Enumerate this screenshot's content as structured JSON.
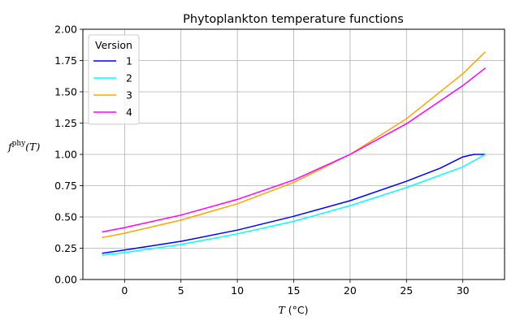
{
  "chart_data": {
    "type": "line",
    "title": "Phytoplankton temperature functions",
    "xlabel": {
      "var": "T",
      "unit": " (°C)"
    },
    "ylabel": {
      "base": "f",
      "sup": "phy",
      "arg": "(T)"
    },
    "xlim": [
      -3.7,
      33.7
    ],
    "ylim": [
      0,
      2
    ],
    "x_ticks": [
      0,
      5,
      10,
      15,
      20,
      25,
      30
    ],
    "y_ticks": [
      "0.00",
      "0.25",
      "0.50",
      "0.75",
      "1.00",
      "1.25",
      "1.50",
      "1.75",
      "2.00"
    ],
    "grid": true,
    "legend": {
      "title": "Version",
      "placement": "top-left"
    },
    "series": [
      {
        "name": "1",
        "color": "#0000ff",
        "x": [
          -2,
          0,
          5,
          10,
          15,
          20,
          25,
          28,
          30,
          31,
          32
        ],
        "y": [
          0.21,
          0.235,
          0.305,
          0.395,
          0.505,
          0.63,
          0.785,
          0.89,
          0.98,
          1.0,
          1.0
        ]
      },
      {
        "name": "2",
        "color": "#00ffff",
        "x": [
          -2,
          0,
          5,
          10,
          15,
          20,
          25,
          30,
          32
        ],
        "y": [
          0.195,
          0.215,
          0.28,
          0.365,
          0.465,
          0.59,
          0.735,
          0.9,
          1.0
        ]
      },
      {
        "name": "3",
        "color": "#ffa500",
        "x": [
          -2,
          0,
          5,
          10,
          15,
          20,
          25,
          30,
          32
        ],
        "y": [
          0.335,
          0.37,
          0.475,
          0.605,
          0.775,
          1.0,
          1.285,
          1.645,
          1.82
        ]
      },
      {
        "name": "4",
        "color": "#ff00ff",
        "x": [
          -2,
          0,
          5,
          10,
          15,
          20,
          25,
          30,
          32
        ],
        "y": [
          0.38,
          0.415,
          0.515,
          0.64,
          0.795,
          1.0,
          1.245,
          1.55,
          1.69
        ]
      }
    ]
  }
}
